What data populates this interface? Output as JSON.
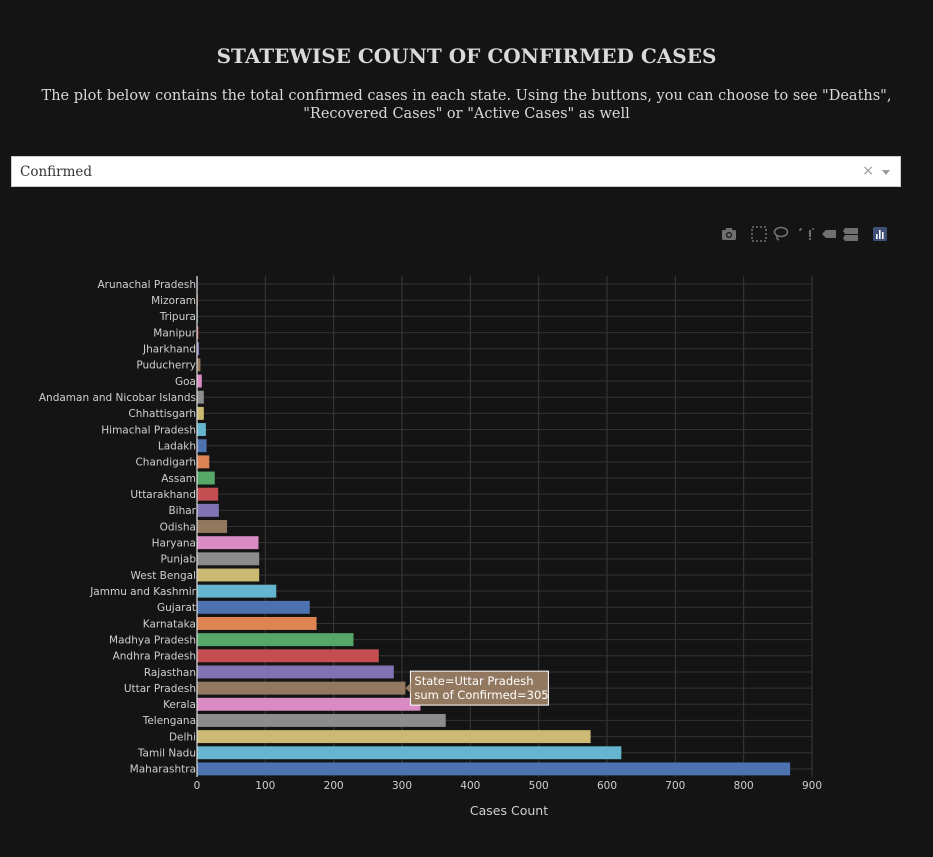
{
  "page": {
    "title": "STATEWISE COUNT OF CONFIRMED CASES",
    "subtitle": "The plot below contains the total confirmed cases in each state. Using the buttons, you can choose to see \"Deaths\", \"Recovered Cases\" or \"Active Cases\" as well"
  },
  "dropdown": {
    "value": "Confirmed",
    "clear": "×"
  },
  "modebar": [
    "camera-icon",
    "box-select-icon",
    "lasso-icon",
    "autoscale-icon",
    "hover-closest-icon",
    "hover-compare-icon",
    "plotly-logo-icon"
  ],
  "chart_data": {
    "type": "bar",
    "orientation": "horizontal",
    "categories": [
      "Arunachal Pradesh",
      "Mizoram",
      "Tripura",
      "Manipur",
      "Jharkhand",
      "Puducherry",
      "Goa",
      "Andaman and Nicobar Islands",
      "Chhattisgarh",
      "Himachal Pradesh",
      "Ladakh",
      "Chandigarh",
      "Assam",
      "Uttarakhand",
      "Bihar",
      "Odisha",
      "Haryana",
      "Punjab",
      "West Bengal",
      "Jammu and Kashmir",
      "Gujarat",
      "Karnataka",
      "Madhya Pradesh",
      "Andhra Pradesh",
      "Rajasthan",
      "Uttar Pradesh",
      "Kerala",
      "Telengana",
      "Delhi",
      "Tamil Nadu",
      "Maharashtra"
    ],
    "values": [
      1,
      1,
      1,
      2,
      3,
      5,
      7,
      10,
      10,
      13,
      14,
      18,
      26,
      31,
      32,
      44,
      90,
      91,
      91,
      116,
      165,
      175,
      229,
      266,
      288,
      305,
      327,
      364,
      576,
      621,
      868
    ],
    "colors": [
      "#4c72b0",
      "#dd8452",
      "#55a868",
      "#c44e52",
      "#8172b3",
      "#937860",
      "#da8bc3",
      "#8c8c8c",
      "#ccb974",
      "#64b5cd",
      "#4c72b0",
      "#dd8452",
      "#55a868",
      "#c44e52",
      "#8172b3",
      "#937860",
      "#da8bc3",
      "#8c8c8c",
      "#ccb974",
      "#64b5cd",
      "#4c72b0",
      "#dd8452",
      "#55a868",
      "#c44e52",
      "#8172b3",
      "#937860",
      "#da8bc3",
      "#8c8c8c",
      "#ccb974",
      "#64b5cd",
      "#4c72b0"
    ],
    "xlabel": "Cases Count",
    "xlim": [
      0,
      900
    ],
    "xticks": [
      0,
      100,
      200,
      300,
      400,
      500,
      600,
      700,
      800,
      900
    ],
    "grid": true,
    "hover": {
      "line1": "State=Uttar Pradesh",
      "line2": "sum of Confirmed=305",
      "color": "#937860"
    }
  }
}
